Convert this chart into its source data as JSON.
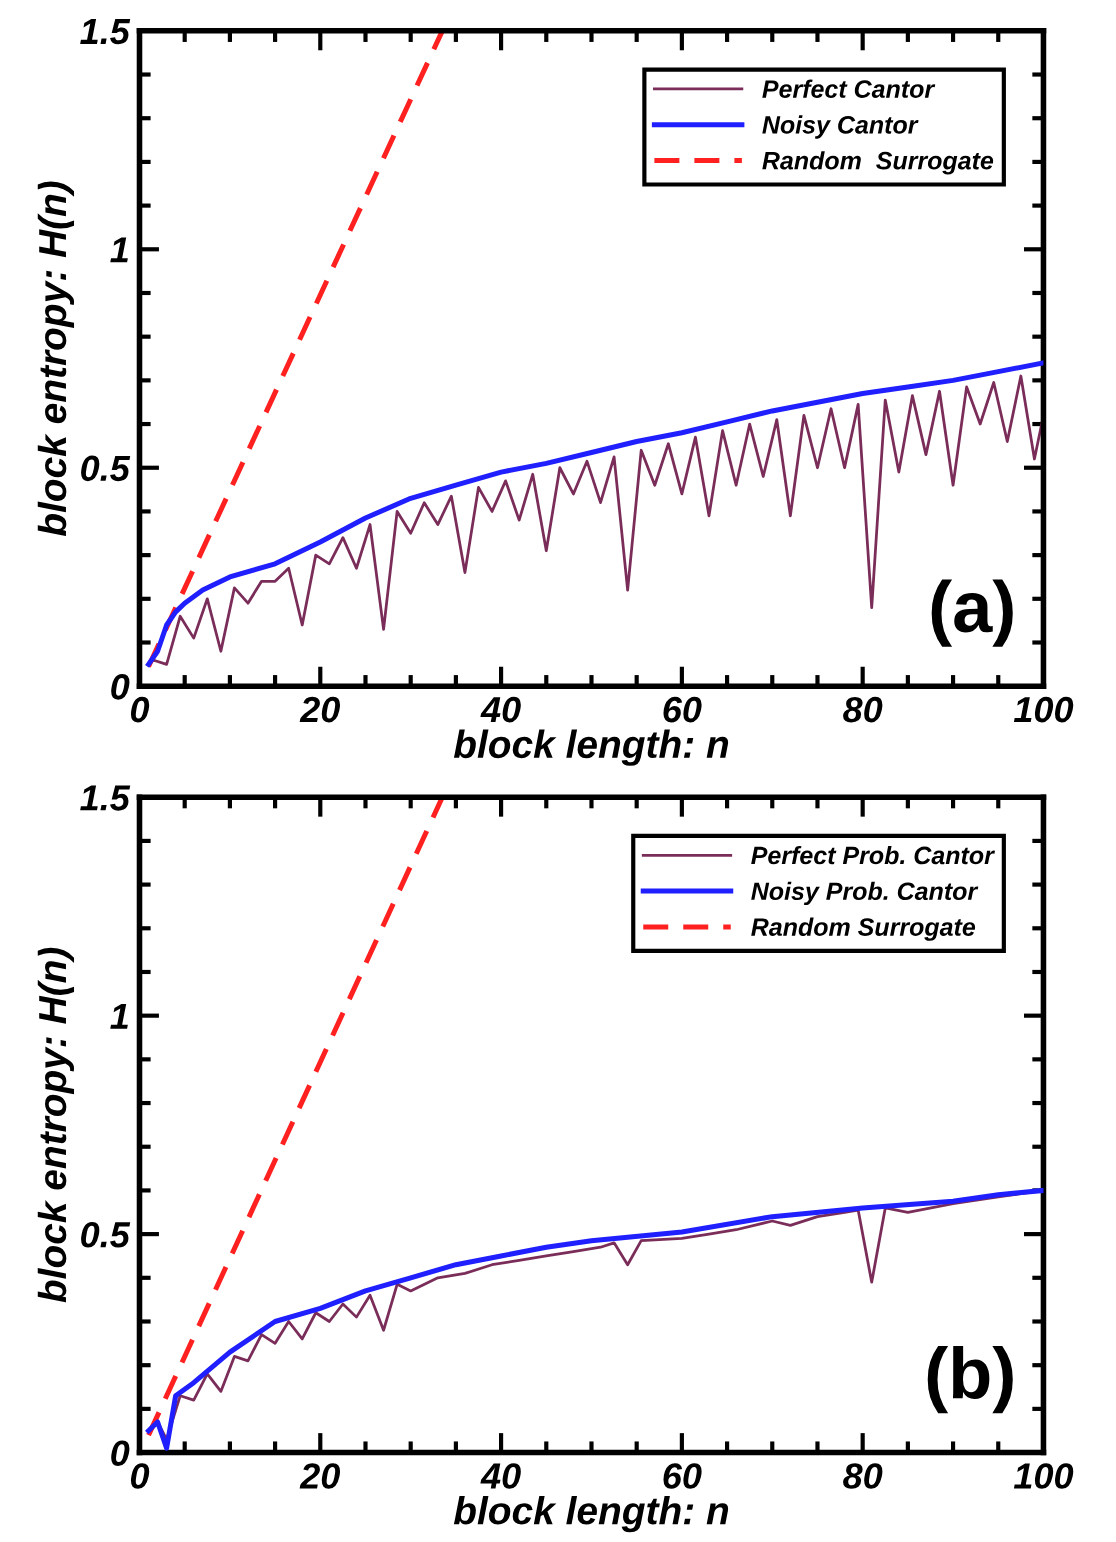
{
  "chart_data": [
    {
      "type": "line",
      "xlabel": "block length: n",
      "ylabel": "block entropy: H(n)",
      "xlim": [
        0,
        100
      ],
      "ylim": [
        0,
        1.5
      ],
      "xticks": [
        0,
        20,
        40,
        60,
        80,
        100
      ],
      "yticks": [
        0,
        0.5,
        1,
        1.5
      ],
      "legend": "top right",
      "grid": false,
      "annotations": [
        "(a)"
      ],
      "series": [
        {
          "name": "Perfect Cantor",
          "color": "#7b2d5a",
          "line_style": "solid",
          "x": [
            1,
            1.5,
            3,
            4.5,
            6,
            7.5,
            9,
            10.5,
            12,
            13.5,
            15,
            16.5,
            18,
            19.5,
            21,
            22.5,
            24,
            25.5,
            27,
            28.5,
            30,
            31.5,
            33,
            34.5,
            36,
            37.5,
            39,
            40.5,
            42,
            43.5,
            45,
            46.5,
            48,
            49.5,
            51,
            52.5,
            54,
            55.5,
            57,
            58.5,
            60,
            61.5,
            63,
            64.5,
            66,
            67.5,
            69,
            70.5,
            72,
            73.5,
            75,
            76.5,
            78,
            79.5,
            81,
            82.5,
            84,
            85.5,
            87,
            88.5,
            90,
            91.5,
            93,
            94.5,
            96,
            97.5,
            99,
            100
          ],
          "values": [
            0.05,
            0.06,
            0.05,
            0.16,
            0.11,
            0.2,
            0.08,
            0.225,
            0.19,
            0.24,
            0.24,
            0.27,
            0.14,
            0.3,
            0.28,
            0.34,
            0.27,
            0.37,
            0.13,
            0.4,
            0.35,
            0.42,
            0.37,
            0.435,
            0.26,
            0.455,
            0.4,
            0.47,
            0.38,
            0.485,
            0.31,
            0.5,
            0.44,
            0.515,
            0.42,
            0.525,
            0.22,
            0.54,
            0.46,
            0.555,
            0.44,
            0.57,
            0.39,
            0.585,
            0.46,
            0.6,
            0.48,
            0.61,
            0.39,
            0.62,
            0.5,
            0.635,
            0.5,
            0.645,
            0.18,
            0.655,
            0.49,
            0.665,
            0.53,
            0.675,
            0.46,
            0.685,
            0.6,
            0.695,
            0.56,
            0.71,
            0.52,
            0.62
          ]
        },
        {
          "name": "Noisy Cantor",
          "color": "#1f1fff",
          "line_style": "solid",
          "x": [
            1,
            2,
            3,
            4,
            5,
            7,
            10,
            15,
            20,
            25,
            30,
            35,
            40,
            45,
            50,
            55,
            60,
            65,
            70,
            75,
            80,
            85,
            90,
            95,
            100
          ],
          "values": [
            0.05,
            0.08,
            0.14,
            0.17,
            0.19,
            0.22,
            0.25,
            0.28,
            0.33,
            0.385,
            0.43,
            0.46,
            0.49,
            0.51,
            0.535,
            0.56,
            0.58,
            0.605,
            0.63,
            0.65,
            0.67,
            0.685,
            0.7,
            0.72,
            0.74
          ]
        },
        {
          "name": "Random  Surrogate",
          "color": "#ff2020",
          "line_style": "dashed",
          "x": [
            1,
            33.5
          ],
          "values": [
            0.045,
            1.5
          ]
        }
      ]
    },
    {
      "type": "line",
      "xlabel": "block length: n",
      "ylabel": "block entropy: H(n)",
      "xlim": [
        0,
        100
      ],
      "ylim": [
        0,
        1.5
      ],
      "xticks": [
        0,
        20,
        40,
        60,
        80,
        100
      ],
      "yticks": [
        0,
        0.5,
        1,
        1.5
      ],
      "legend": "top right",
      "grid": false,
      "annotations": [
        "(b)"
      ],
      "series": [
        {
          "name": "Perfect Prob. Cantor",
          "color": "#7b2d5a",
          "line_style": "solid",
          "x": [
            1,
            2,
            3,
            4.5,
            6,
            7.5,
            9,
            10.5,
            12,
            13.5,
            15,
            16.5,
            18,
            19.5,
            21,
            22.5,
            24,
            25.5,
            27,
            28.5,
            30,
            33,
            36,
            39,
            42,
            45,
            48,
            51,
            52.5,
            54,
            55.5,
            60,
            63,
            66,
            70,
            72,
            75,
            78,
            79.5,
            81,
            82.5,
            85,
            90,
            95,
            100
          ],
          "values": [
            0.05,
            0.07,
            0.03,
            0.13,
            0.12,
            0.18,
            0.14,
            0.22,
            0.21,
            0.27,
            0.25,
            0.3,
            0.26,
            0.32,
            0.3,
            0.34,
            0.31,
            0.36,
            0.28,
            0.385,
            0.37,
            0.4,
            0.41,
            0.43,
            0.44,
            0.45,
            0.46,
            0.47,
            0.48,
            0.43,
            0.485,
            0.49,
            0.5,
            0.51,
            0.53,
            0.52,
            0.54,
            0.55,
            0.555,
            0.39,
            0.56,
            0.55,
            0.57,
            0.585,
            0.6
          ]
        },
        {
          "name": "Noisy Prob. Cantor",
          "color": "#1f1fff",
          "line_style": "solid",
          "x": [
            1,
            2,
            3,
            4,
            6,
            10,
            15,
            20,
            25,
            30,
            35,
            40,
            45,
            50,
            60,
            70,
            80,
            90,
            95,
            100
          ],
          "values": [
            0.05,
            0.07,
            0.01,
            0.13,
            0.16,
            0.23,
            0.3,
            0.33,
            0.37,
            0.4,
            0.43,
            0.45,
            0.47,
            0.485,
            0.505,
            0.54,
            0.56,
            0.575,
            0.59,
            0.6
          ]
        },
        {
          "name": "Random Surrogate",
          "color": "#ff2020",
          "line_style": "dashed",
          "x": [
            1,
            33.5
          ],
          "values": [
            0.04,
            1.5
          ]
        }
      ]
    }
  ]
}
